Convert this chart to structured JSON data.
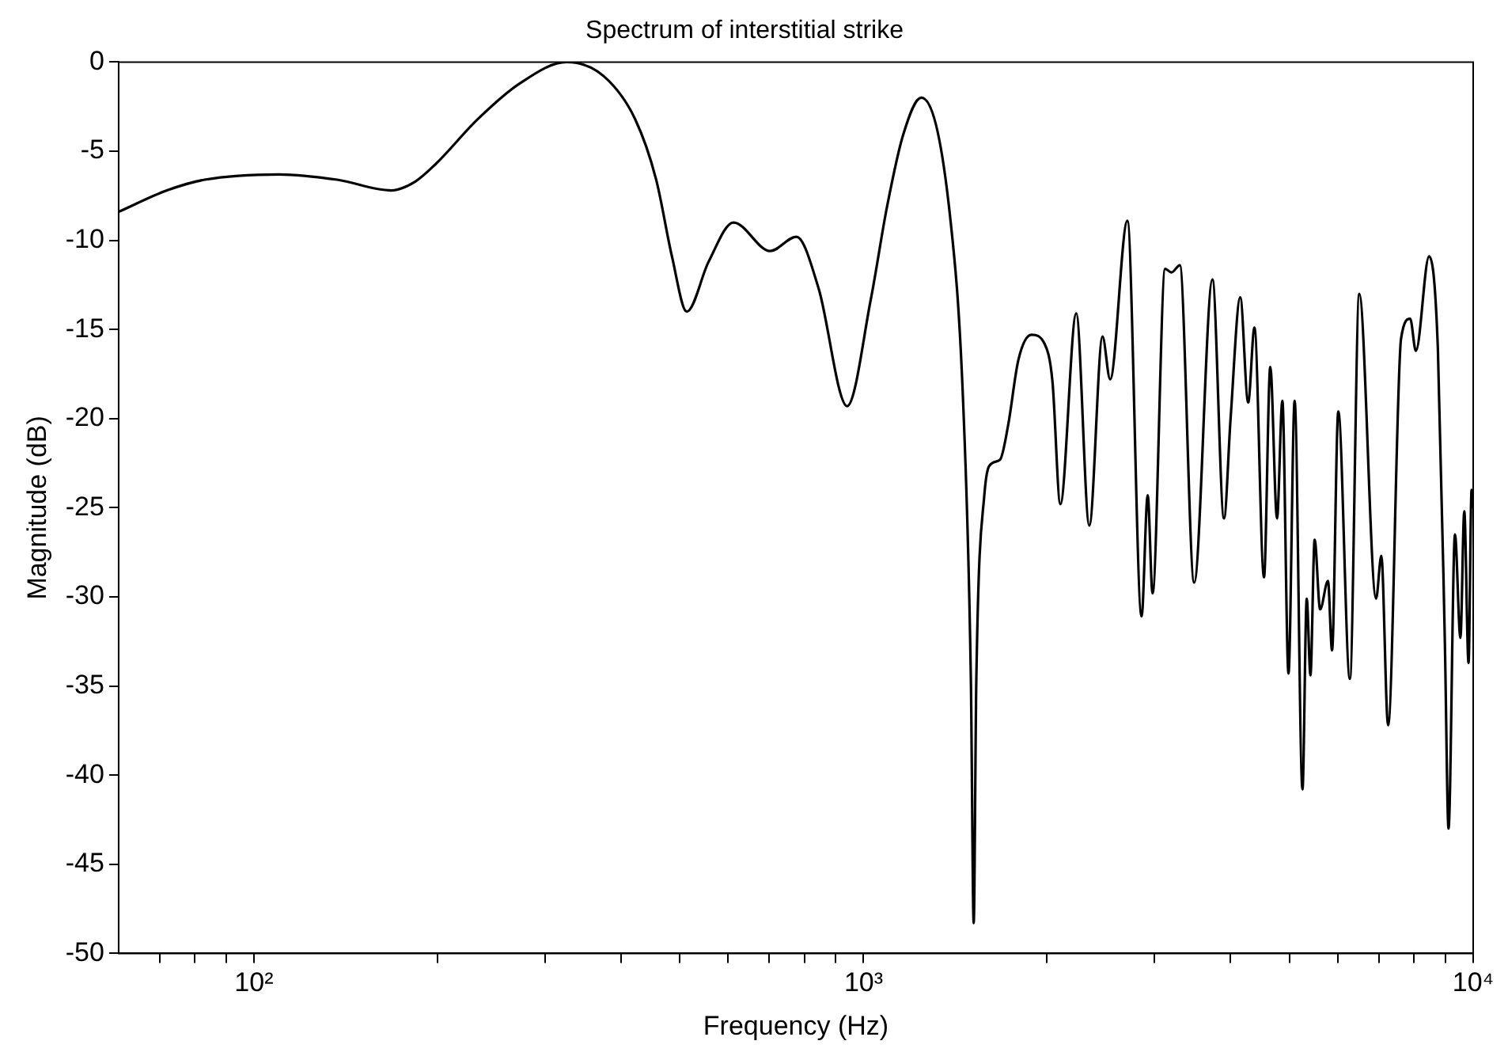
{
  "chart_data": {
    "type": "line",
    "title": "Spectrum of interstitial strike",
    "xlabel": "Frequency (Hz)",
    "ylabel": "Magnitude (dB)",
    "log": "x",
    "grid": false,
    "legend": false,
    "xlim": [
      60,
      10000
    ],
    "ylim": [
      -50,
      0
    ],
    "xticks": [
      {
        "value": 70,
        "label": null
      },
      {
        "value": 80,
        "label": null
      },
      {
        "value": 90,
        "label": null
      },
      {
        "value": 100,
        "label": "10²"
      },
      {
        "value": 200,
        "label": null
      },
      {
        "value": 300,
        "label": null
      },
      {
        "value": 400,
        "label": null
      },
      {
        "value": 500,
        "label": null
      },
      {
        "value": 600,
        "label": null
      },
      {
        "value": 700,
        "label": null
      },
      {
        "value": 800,
        "label": null
      },
      {
        "value": 900,
        "label": null
      },
      {
        "value": 1000,
        "label": "10³"
      },
      {
        "value": 2000,
        "label": null
      },
      {
        "value": 3000,
        "label": null
      },
      {
        "value": 4000,
        "label": null
      },
      {
        "value": 5000,
        "label": null
      },
      {
        "value": 6000,
        "label": null
      },
      {
        "value": 7000,
        "label": null
      },
      {
        "value": 8000,
        "label": null
      },
      {
        "value": 9000,
        "label": null
      },
      {
        "value": 10000,
        "label": "10⁴"
      }
    ],
    "yticks": [
      -50,
      -45,
      -40,
      -35,
      -30,
      -25,
      -20,
      -15,
      -10,
      -5,
      0
    ],
    "series": [
      {
        "color": "#000000",
        "x": [
          60,
          72,
          83,
          110,
          137,
          168,
          184,
          199,
          233,
          273,
          326,
          375,
          422,
          457,
          485,
          513,
          557,
          612,
          703,
          776,
          844,
          940,
          1028,
          1093,
          1161,
          1244,
          1387,
          1458,
          1500,
          1516,
          1531,
          1578,
          1625,
          1675,
          1726,
          1795,
          1886,
          1981,
          2041,
          2103,
          2233,
          2346,
          2466,
          2538,
          2709,
          2858,
          2925,
          2979,
          3124,
          3200,
          3302,
          3486,
          3735,
          3902,
          4000,
          4149,
          4275,
          4377,
          4538,
          4647,
          4767,
          4864,
          4978,
          5095,
          5248,
          5333,
          5408,
          5495,
          5610,
          5778,
          5868,
          6008,
          6277,
          6503,
          6930,
          7068,
          7251,
          7616,
          7882,
          8054,
          8466,
          8752,
          8986,
          9111,
          9335,
          9529,
          9669,
          9826,
          9940,
          10000
        ],
        "values": [
          -8.4,
          -7.2,
          -6.6,
          -6.3,
          -6.6,
          -7.2,
          -6.7,
          -5.7,
          -3.2,
          -1.2,
          0,
          -0.8,
          -3.2,
          -6.6,
          -10.9,
          -14,
          -11.2,
          -9,
          -10.6,
          -9.8,
          -12.7,
          -19.3,
          -13.3,
          -8.1,
          -4.1,
          -2,
          -8.7,
          -19.4,
          -34.7,
          -48.3,
          -34.7,
          -24.3,
          -22.5,
          -22.3,
          -20.4,
          -16.7,
          -15.3,
          -15.8,
          -17.9,
          -24.8,
          -14.1,
          -26,
          -15.4,
          -17.8,
          -8.9,
          -31.1,
          -24.3,
          -29.8,
          -11.6,
          -11.8,
          -11.4,
          -29.2,
          -12.2,
          -25.6,
          -20,
          -13.2,
          -19.1,
          -14.9,
          -28.9,
          -17.1,
          -25.6,
          -19,
          -34.3,
          -19,
          -40.8,
          -30.1,
          -34.4,
          -26.8,
          -30.7,
          -29.1,
          -33,
          -19.6,
          -34.6,
          -13,
          -30.1,
          -27.7,
          -37.2,
          -15.5,
          -14.4,
          -16.2,
          -10.9,
          -16.1,
          -32.6,
          -43,
          -26.5,
          -32.3,
          -25.2,
          -33.7,
          -24,
          -25
        ]
      }
    ]
  }
}
